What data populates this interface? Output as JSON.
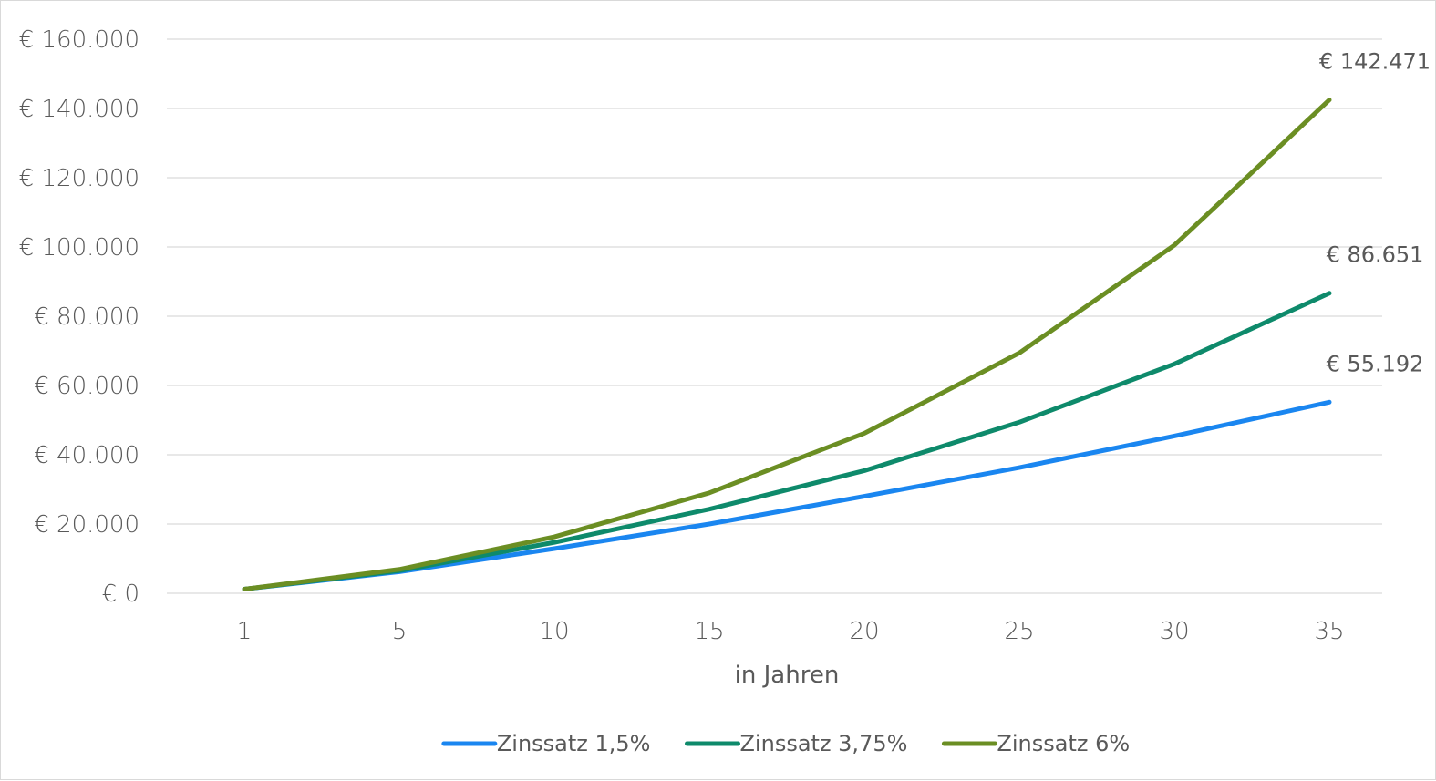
{
  "chart_data": {
    "type": "line",
    "title": "",
    "xlabel": "in Jahren",
    "ylabel": "",
    "categories": [
      "1",
      "5",
      "10",
      "15",
      "20",
      "25",
      "30",
      "35"
    ],
    "y_ticks": [
      0,
      20000,
      40000,
      60000,
      80000,
      100000,
      120000,
      140000,
      160000
    ],
    "y_tick_labels": [
      "€ 0",
      "€ 20.000",
      "€ 40.000",
      "€ 60.000",
      "€ 80.000",
      "€ 100.000",
      "€ 120.000",
      "€ 140.000",
      "€ 160.000"
    ],
    "ylim": [
      0,
      160000
    ],
    "grid": true,
    "legend_position": "bottom",
    "series": [
      {
        "name": "Zinssatz 1,5%",
        "color": "#1a86f0",
        "values": [
          1200,
          6200,
          12900,
          20000,
          28000,
          36300,
          45400,
          55192
        ],
        "end_label": "€ 55.192"
      },
      {
        "name": "Zinssatz 3,75%",
        "color": "#0e8a6b",
        "values": [
          1200,
          6500,
          14700,
          24300,
          35400,
          49400,
          66200,
          86651
        ],
        "end_label": "€ 86.651"
      },
      {
        "name": "Zinssatz 6%",
        "color": "#6b8e23",
        "values": [
          1200,
          6900,
          16300,
          29000,
          46200,
          69400,
          100500,
          142471
        ],
        "end_label": "€ 142.471"
      }
    ]
  }
}
